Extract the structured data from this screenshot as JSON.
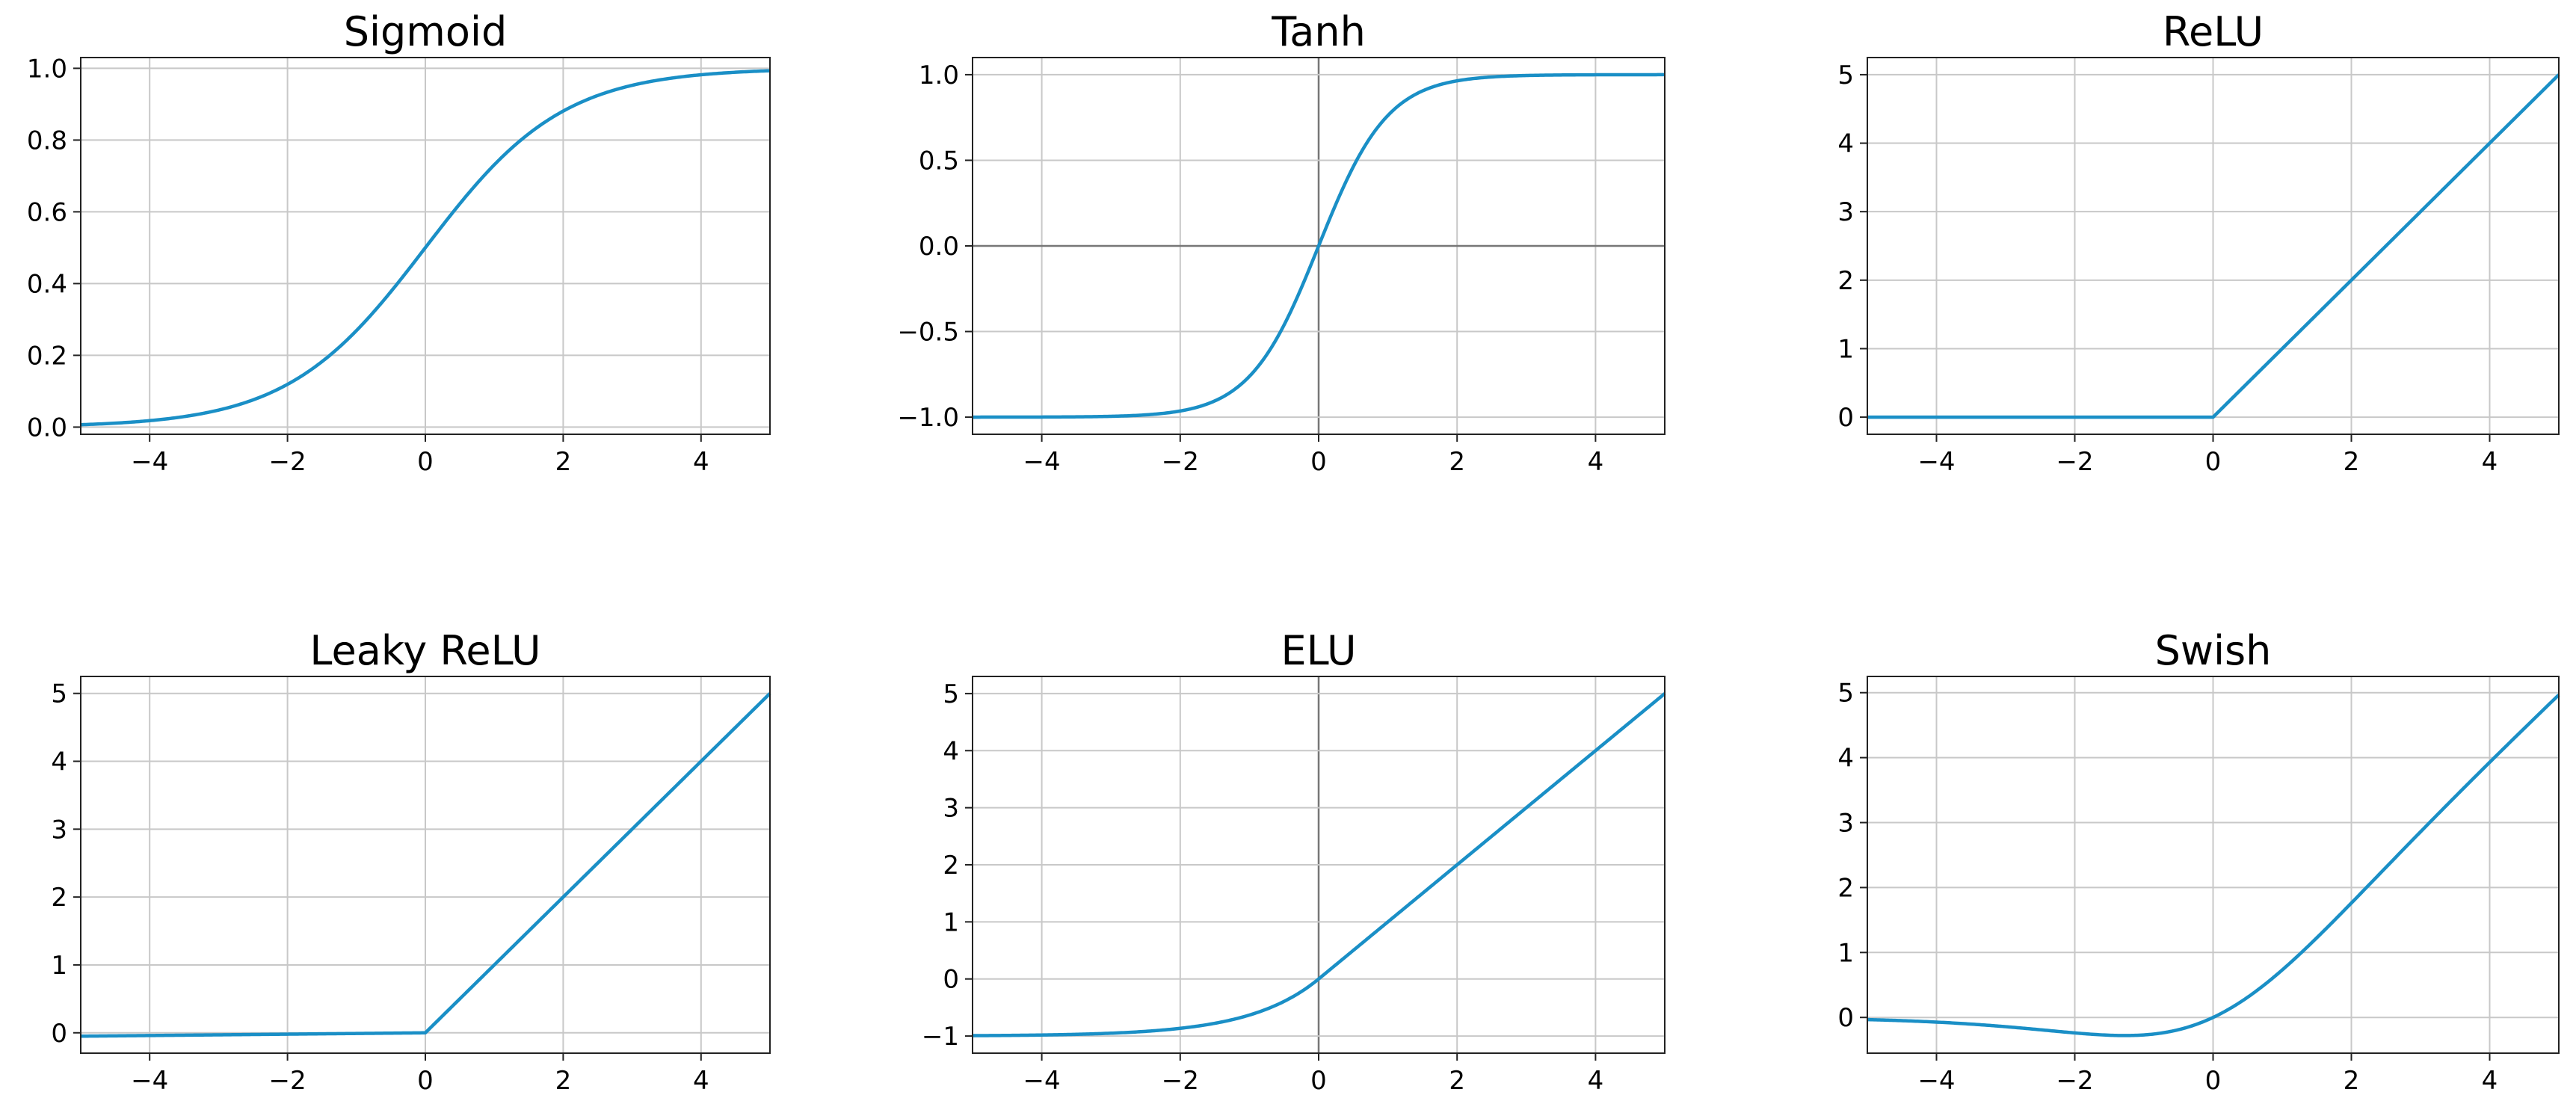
{
  "chart_data": [
    {
      "type": "line",
      "title": "Sigmoid",
      "function": "sigmoid",
      "xlim": [
        -5,
        5
      ],
      "ylim": [
        -0.02,
        1.03
      ],
      "xticks": [
        -4,
        -2,
        0,
        2,
        4
      ],
      "xtick_labels": [
        "−4",
        "−2",
        "0",
        "2",
        "4"
      ],
      "yticks": [
        0.0,
        0.2,
        0.4,
        0.6,
        0.8,
        1.0
      ],
      "ytick_labels": [
        "0.0",
        "0.2",
        "0.4",
        "0.6",
        "0.8",
        "1.0"
      ],
      "grid": true,
      "x": [
        -5,
        -4,
        -3,
        -2,
        -1,
        0,
        1,
        2,
        3,
        4,
        5
      ],
      "y": [
        0.007,
        0.018,
        0.047,
        0.119,
        0.269,
        0.5,
        0.731,
        0.881,
        0.953,
        0.982,
        0.993
      ],
      "color": "#1a8fc6"
    },
    {
      "type": "line",
      "title": "Tanh",
      "function": "tanh",
      "xlim": [
        -5,
        5
      ],
      "ylim": [
        -1.1,
        1.1
      ],
      "xticks": [
        -4,
        -2,
        0,
        2,
        4
      ],
      "xtick_labels": [
        "−4",
        "−2",
        "0",
        "2",
        "4"
      ],
      "yticks": [
        -1.0,
        -0.5,
        0.0,
        0.5,
        1.0
      ],
      "ytick_labels": [
        "−1.0",
        "−0.5",
        "0.0",
        "0.5",
        "1.0"
      ],
      "grid": true,
      "x": [
        -5,
        -4,
        -3,
        -2,
        -1,
        0,
        1,
        2,
        3,
        4,
        5
      ],
      "y": [
        -1.0,
        -0.999,
        -0.995,
        -0.964,
        -0.762,
        0.0,
        0.762,
        0.964,
        0.995,
        0.999,
        1.0
      ],
      "color": "#1a8fc6"
    },
    {
      "type": "line",
      "title": "ReLU",
      "function": "relu",
      "xlim": [
        -5,
        5
      ],
      "ylim": [
        -0.25,
        5.25
      ],
      "xticks": [
        -4,
        -2,
        0,
        2,
        4
      ],
      "xtick_labels": [
        "−4",
        "−2",
        "0",
        "2",
        "4"
      ],
      "yticks": [
        0,
        1,
        2,
        3,
        4,
        5
      ],
      "ytick_labels": [
        "0",
        "1",
        "2",
        "3",
        "4",
        "5"
      ],
      "grid": true,
      "x": [
        -5,
        -4,
        -3,
        -2,
        -1,
        0,
        1,
        2,
        3,
        4,
        5
      ],
      "y": [
        0,
        0,
        0,
        0,
        0,
        0,
        1,
        2,
        3,
        4,
        5
      ],
      "color": "#1a8fc6"
    },
    {
      "type": "line",
      "title": "Leaky ReLU",
      "function": "leaky_relu",
      "xlim": [
        -5,
        5
      ],
      "ylim": [
        -0.3,
        5.25
      ],
      "xticks": [
        -4,
        -2,
        0,
        2,
        4
      ],
      "xtick_labels": [
        "−4",
        "−2",
        "0",
        "2",
        "4"
      ],
      "yticks": [
        0,
        1,
        2,
        3,
        4,
        5
      ],
      "ytick_labels": [
        "0",
        "1",
        "2",
        "3",
        "4",
        "5"
      ],
      "grid": true,
      "x": [
        -5,
        -4,
        -3,
        -2,
        -1,
        0,
        1,
        2,
        3,
        4,
        5
      ],
      "y": [
        -0.05,
        -0.04,
        -0.03,
        -0.02,
        -0.01,
        0,
        1,
        2,
        3,
        4,
        5
      ],
      "color": "#1a8fc6"
    },
    {
      "type": "line",
      "title": "ELU",
      "function": "elu",
      "xlim": [
        -5,
        5
      ],
      "ylim": [
        -1.3,
        5.3
      ],
      "xticks": [
        -4,
        -2,
        0,
        2,
        4
      ],
      "xtick_labels": [
        "−4",
        "−2",
        "0",
        "2",
        "4"
      ],
      "yticks": [
        -1,
        0,
        1,
        2,
        3,
        4,
        5
      ],
      "ytick_labels": [
        "−1",
        "0",
        "1",
        "2",
        "3",
        "4",
        "5"
      ],
      "grid": true,
      "x": [
        -5,
        -4,
        -3,
        -2,
        -1,
        0,
        1,
        2,
        3,
        4,
        5
      ],
      "y": [
        -0.993,
        -0.982,
        -0.95,
        -0.865,
        -0.632,
        0,
        1,
        2,
        3,
        4,
        5
      ],
      "color": "#1a8fc6"
    },
    {
      "type": "line",
      "title": "Swish",
      "function": "swish",
      "xlim": [
        -5,
        5
      ],
      "ylim": [
        -0.55,
        5.25
      ],
      "xticks": [
        -4,
        -2,
        0,
        2,
        4
      ],
      "xtick_labels": [
        "−4",
        "−2",
        "0",
        "2",
        "4"
      ],
      "yticks": [
        0,
        1,
        2,
        3,
        4,
        5
      ],
      "ytick_labels": [
        "0",
        "1",
        "2",
        "3",
        "4",
        "5"
      ],
      "grid": true,
      "x": [
        -5,
        -4,
        -3,
        -2,
        -1,
        0,
        1,
        2,
        3,
        4,
        5
      ],
      "y": [
        -0.033,
        -0.072,
        -0.142,
        -0.238,
        -0.269,
        0,
        0.731,
        1.762,
        2.858,
        3.928,
        4.967
      ],
      "color": "#1a8fc6"
    }
  ]
}
